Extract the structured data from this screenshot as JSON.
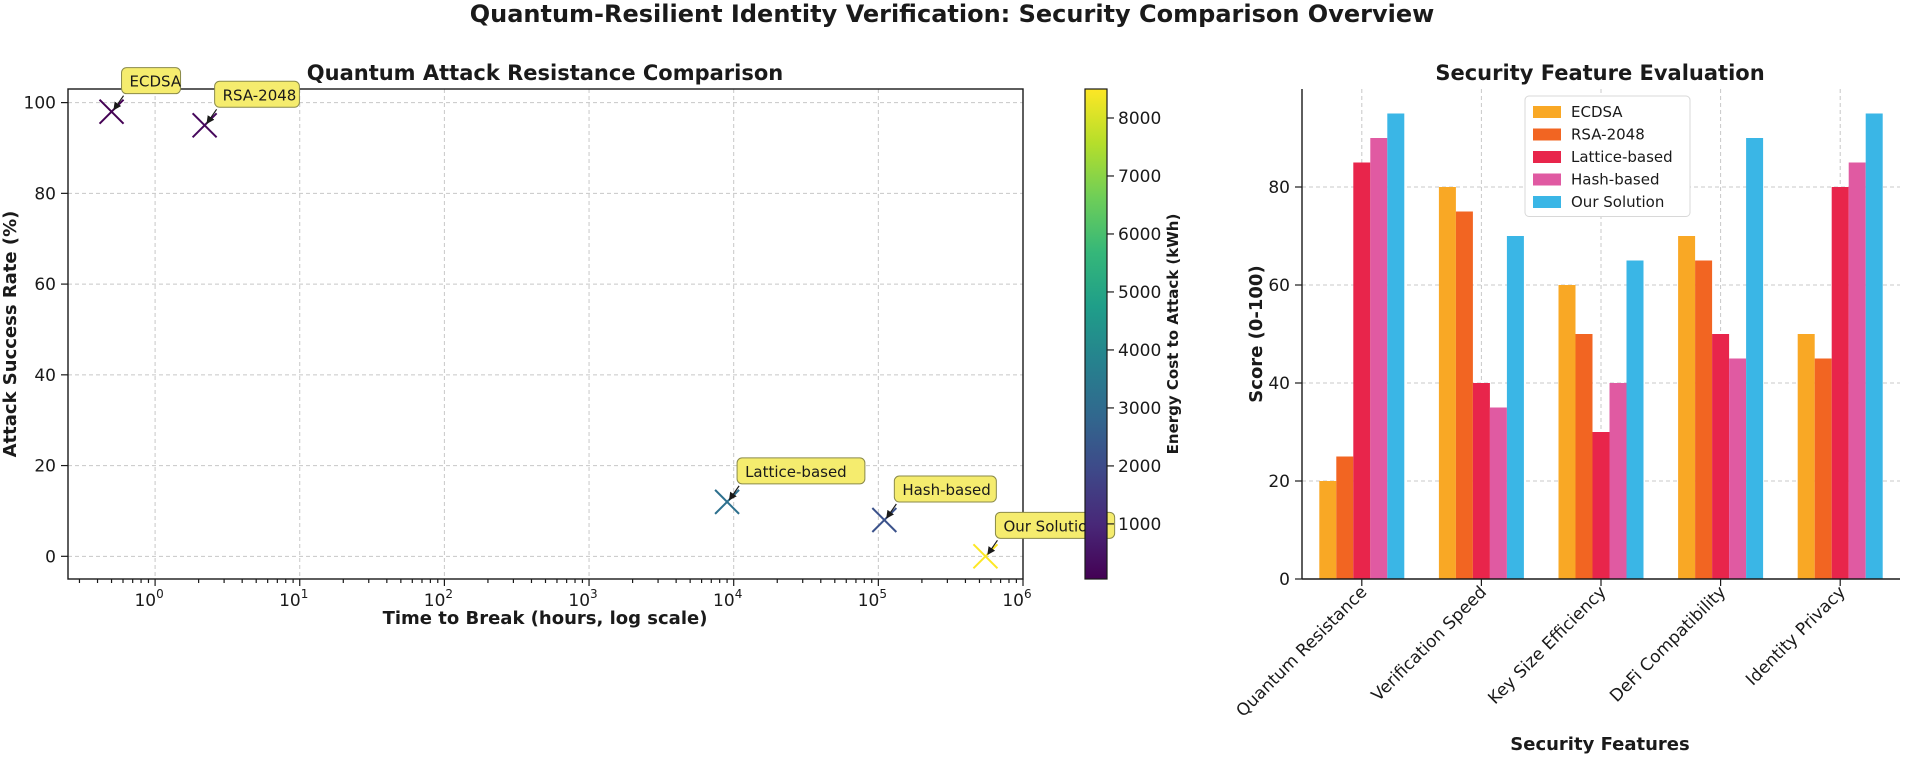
{
  "suptitle": "Quantum-Resilient Identity Verification: Security Comparison Overview",
  "chart_data": [
    {
      "type": "scatter",
      "title": "Quantum Attack Resistance Comparison",
      "xlabel": "Time to Break (hours, log scale)",
      "ylabel": "Attack Success Rate (%)",
      "xscale": "log",
      "xlim": [
        0.25,
        1000000
      ],
      "ylim": [
        -5,
        103
      ],
      "xticks": [
        {
          "value": 1,
          "base": "10",
          "exp": "0"
        },
        {
          "value": 10,
          "base": "10",
          "exp": "1"
        },
        {
          "value": 100,
          "base": "10",
          "exp": "2"
        },
        {
          "value": 1000,
          "base": "10",
          "exp": "3"
        },
        {
          "value": 10000,
          "base": "10",
          "exp": "4"
        },
        {
          "value": 100000,
          "base": "10",
          "exp": "5"
        },
        {
          "value": 1000000,
          "base": "10",
          "exp": "6"
        }
      ],
      "yticks": [
        0,
        20,
        40,
        60,
        80,
        100
      ],
      "grid": true,
      "marker": "x",
      "points": [
        {
          "label": "ECDSA",
          "x": 0.5,
          "y": 98,
          "energy": 50,
          "color": "#440154"
        },
        {
          "label": "RSA-2048",
          "x": 2.2,
          "y": 95,
          "energy": 300,
          "color": "#46085c"
        },
        {
          "label": "Lattice-based",
          "x": 9000,
          "y": 12,
          "energy": 4000,
          "color": "#2d708e"
        },
        {
          "label": "Hash-based",
          "x": 110000,
          "y": 8,
          "energy": 3000,
          "color": "#3b528b"
        },
        {
          "label": "Our Solution",
          "x": 550000,
          "y": 0,
          "energy": 8500,
          "color": "#fde725"
        }
      ],
      "colorbar": {
        "label": "Energy Cost to Attack (kWh)",
        "min": 50,
        "max": 8500,
        "ticks": [
          1000,
          2000,
          3000,
          4000,
          5000,
          6000,
          7000,
          8000
        ],
        "colormap": [
          "#440154",
          "#482878",
          "#3e4989",
          "#31688e",
          "#26828e",
          "#1f9e89",
          "#35b779",
          "#6ece58",
          "#b5de2b",
          "#fde725"
        ]
      }
    },
    {
      "type": "bar",
      "title": "Security Feature Evaluation",
      "xlabel": "Security Features",
      "ylabel": "Score (0-100)",
      "ylim": [
        0,
        100
      ],
      "yticks": [
        0,
        20,
        40,
        60,
        80
      ],
      "grid": true,
      "legend_position": "top-center",
      "categories": [
        "Quantum Resistance",
        "Verification Speed",
        "Key Size Efficiency",
        "DeFi Compatibility",
        "Identity Privacy"
      ],
      "series": [
        {
          "name": "ECDSA",
          "color": "#f9a825",
          "values": [
            20,
            80,
            60,
            70,
            50
          ]
        },
        {
          "name": "RSA-2048",
          "color": "#f26522",
          "values": [
            25,
            75,
            50,
            65,
            45
          ]
        },
        {
          "name": "Lattice-based",
          "color": "#e8254b",
          "values": [
            85,
            40,
            30,
            50,
            80
          ]
        },
        {
          "name": "Hash-based",
          "color": "#e05aa2",
          "values": [
            90,
            35,
            40,
            45,
            85
          ]
        },
        {
          "name": "Our Solution",
          "color": "#3ab6e6",
          "values": [
            95,
            70,
            65,
            90,
            95
          ]
        }
      ]
    }
  ]
}
